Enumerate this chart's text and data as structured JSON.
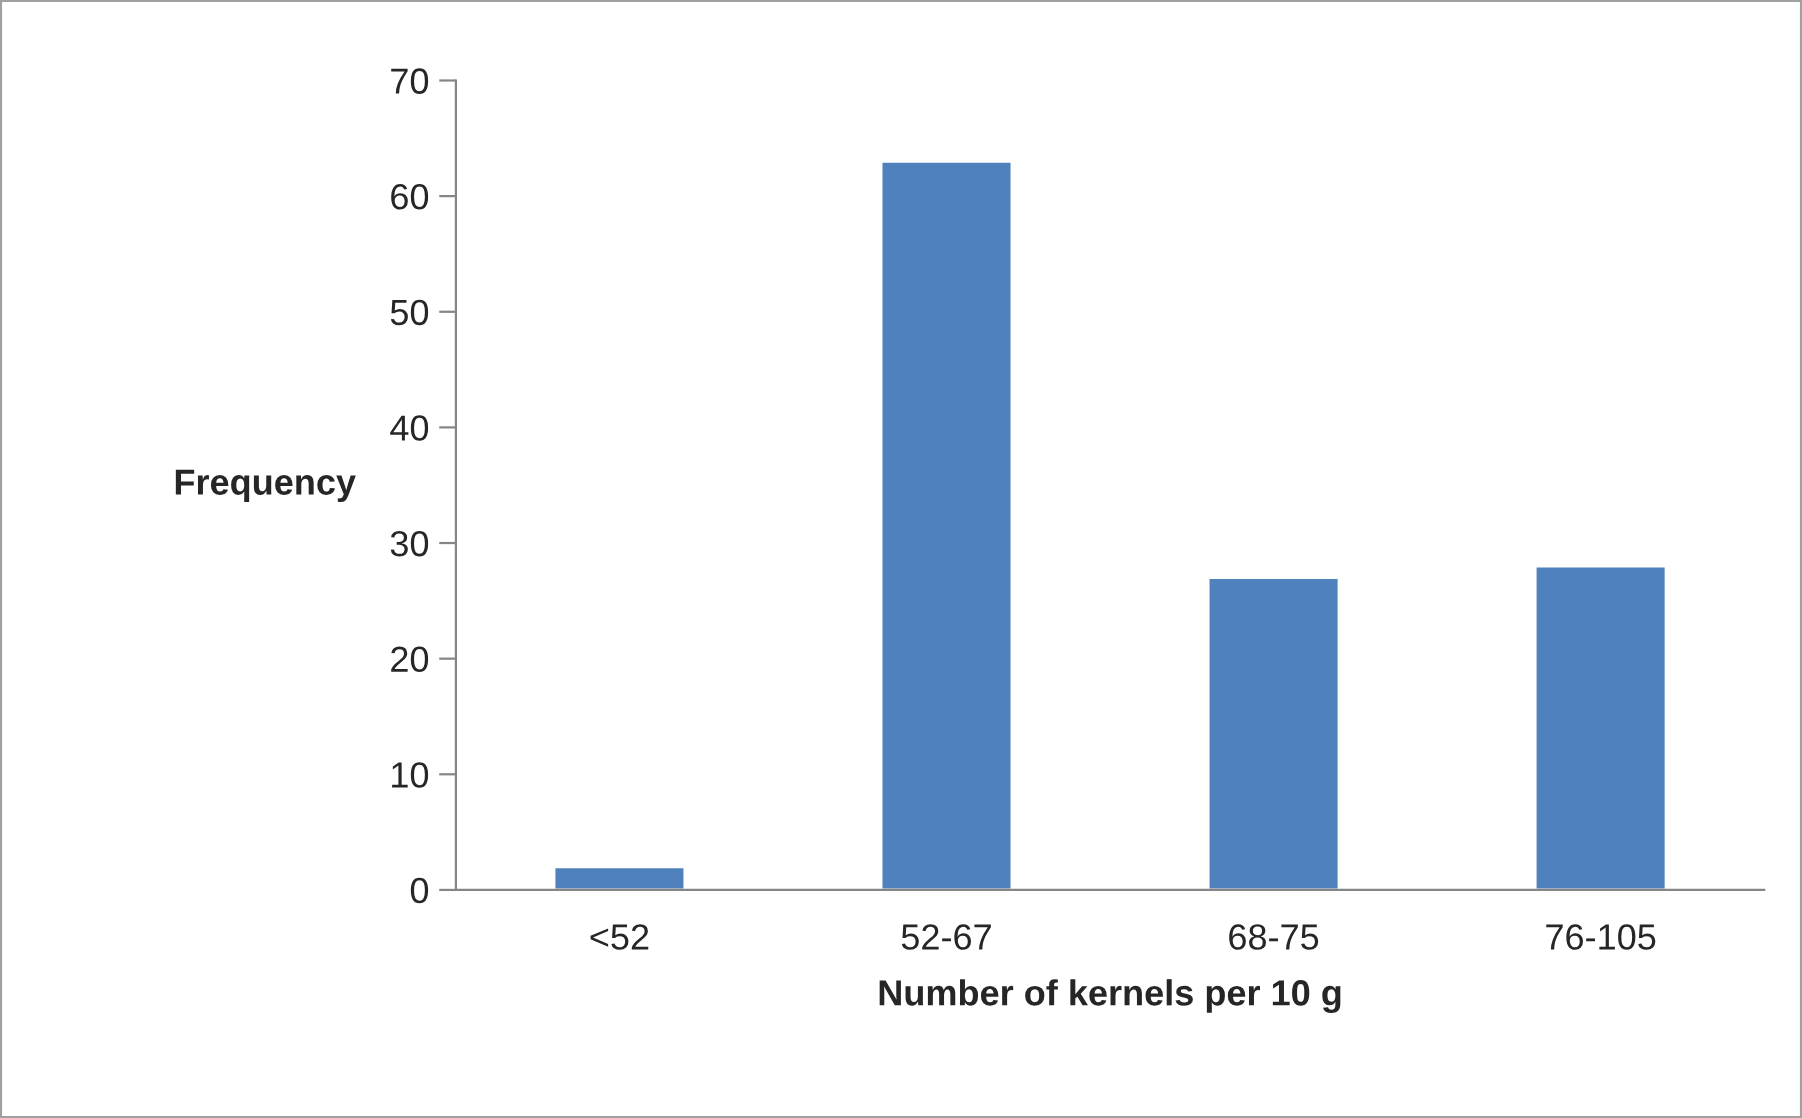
{
  "chart_data": {
    "type": "bar",
    "xlabel": "Number of kernels per 10 g",
    "ylabel": "Frequency",
    "categories": [
      "<52",
      "52-67",
      "68-75",
      "76-105"
    ],
    "values": [
      2,
      63,
      27,
      28
    ],
    "color": "#4f81bd",
    "ylim": [
      0,
      70
    ],
    "yticks": [
      0,
      10,
      20,
      30,
      40,
      50,
      60,
      70
    ],
    "grid": false,
    "legend": false
  }
}
